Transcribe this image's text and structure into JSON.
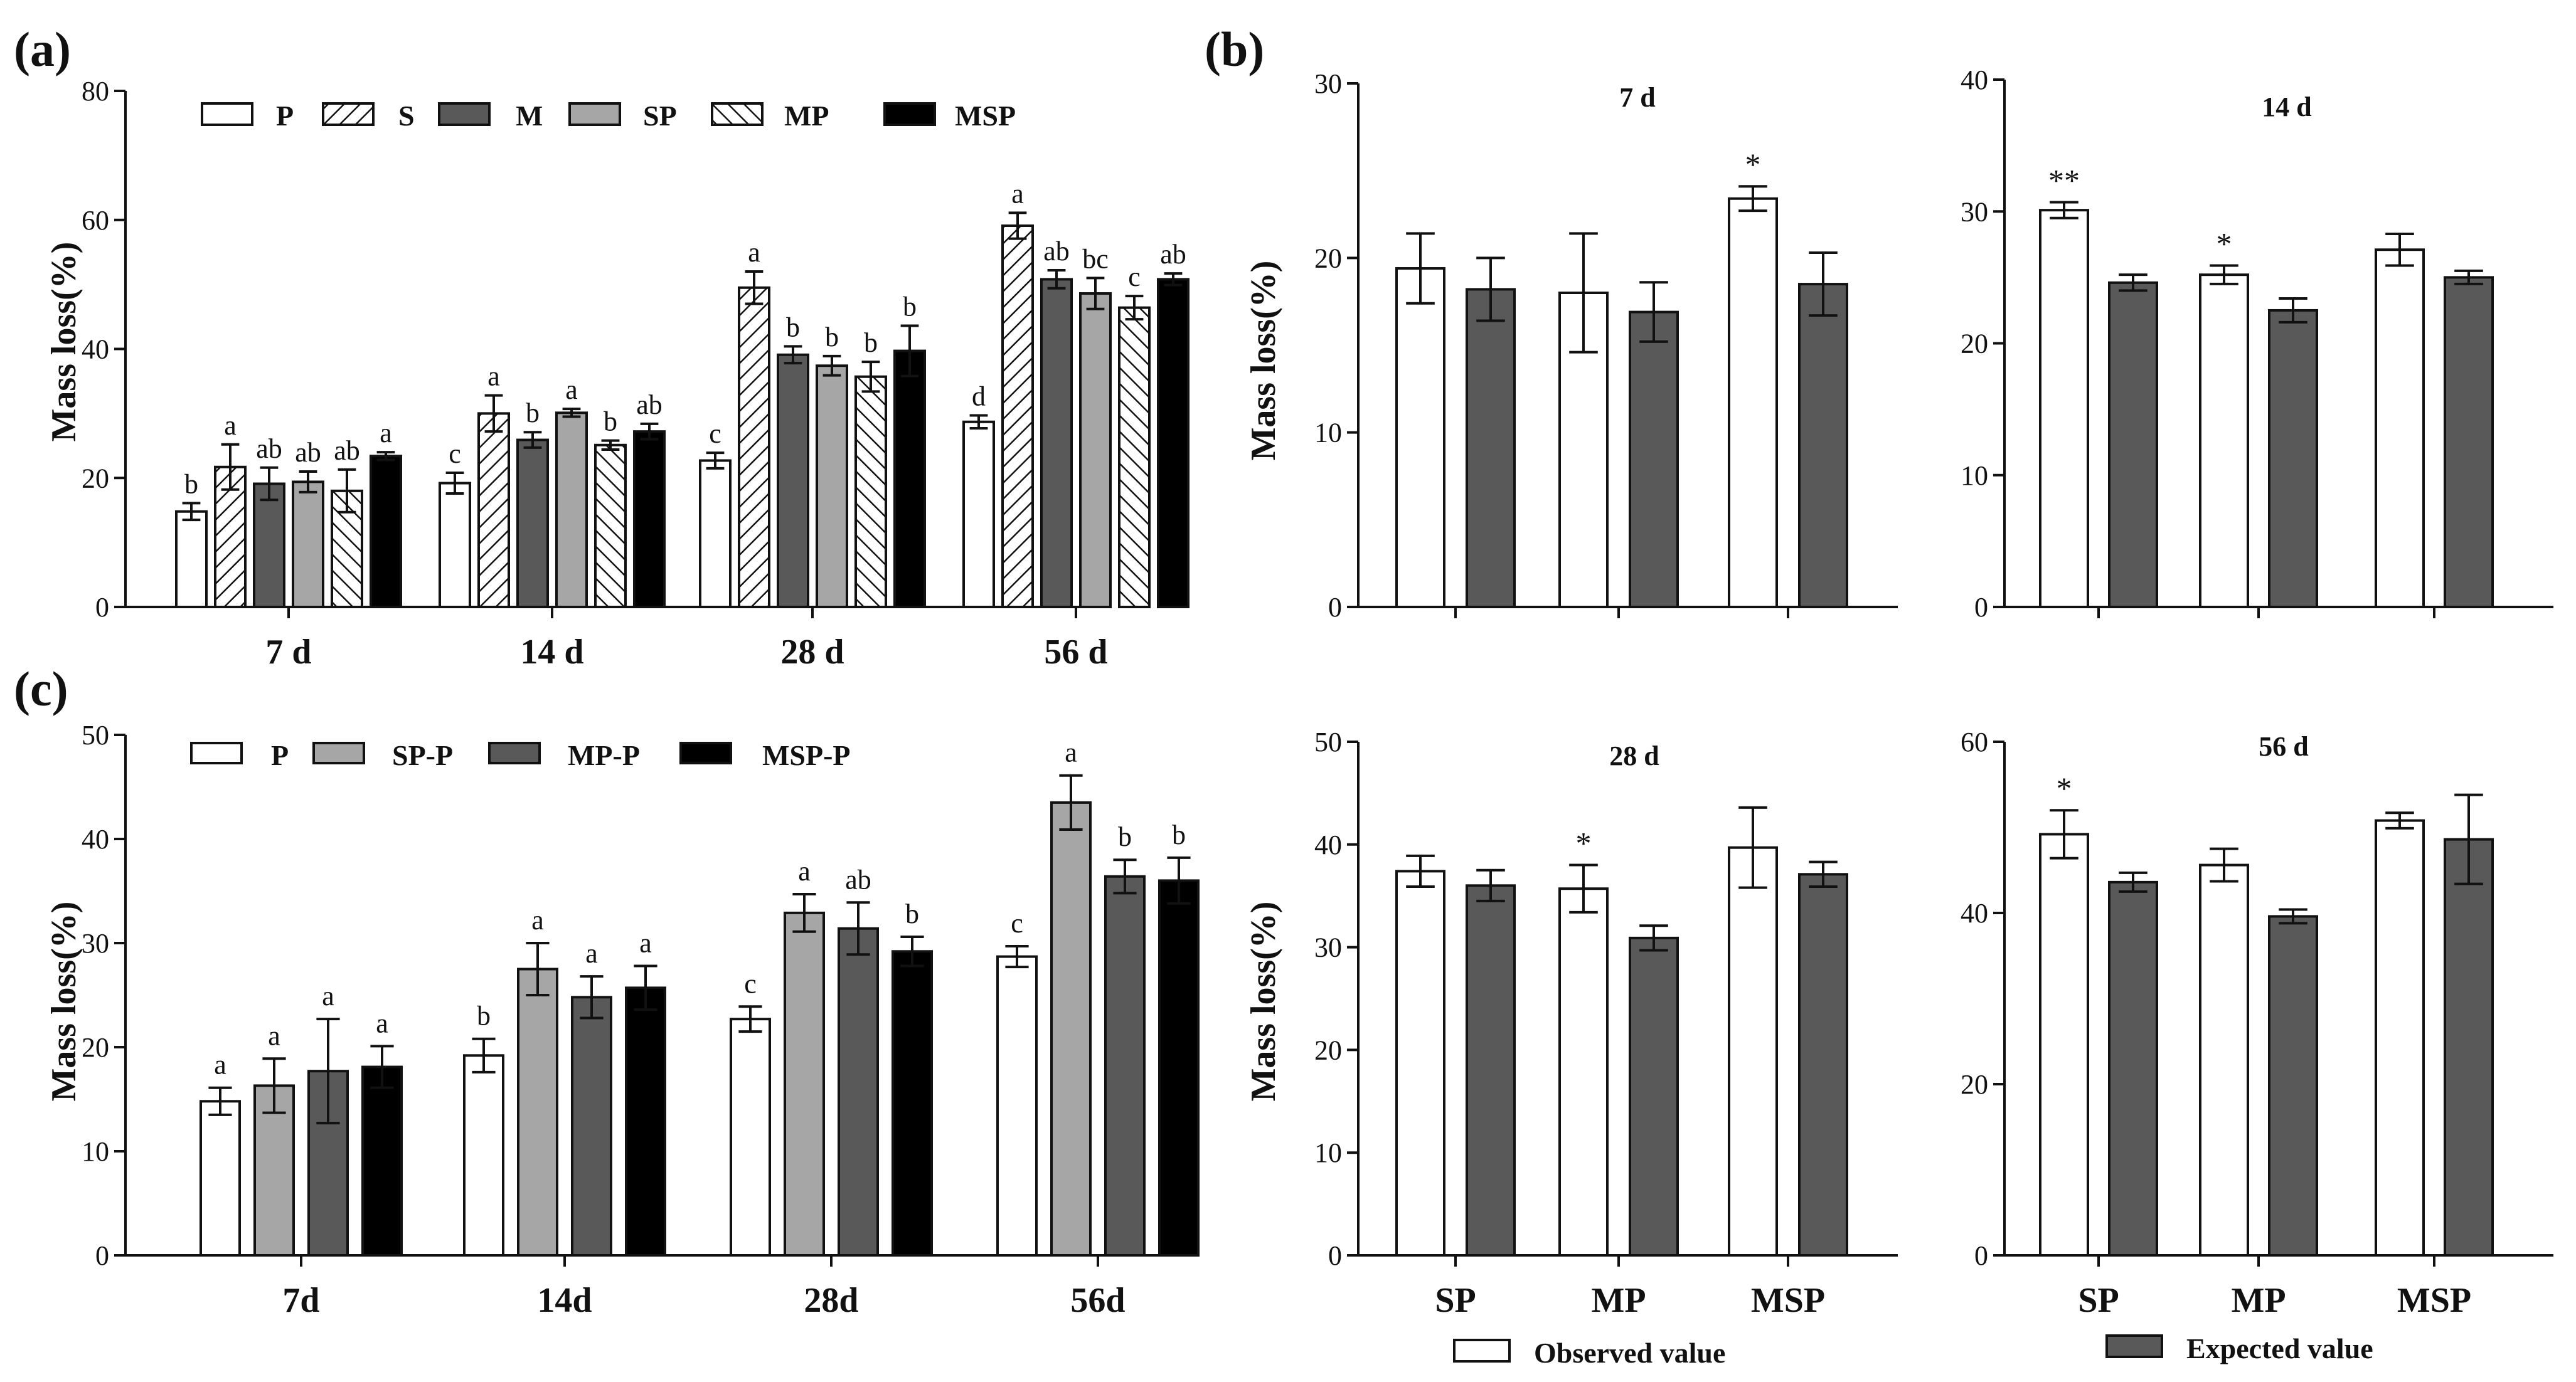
{
  "colors": {
    "P": "#ffffff",
    "S": "#ffffff",
    "M": "#595959",
    "SP": "#a6a6a6",
    "MP": "#ffffff",
    "MSP": "#000000",
    "SP-P": "#a6a6a6",
    "MP-P": "#595959",
    "MSP-P": "#000000",
    "observed": "#ffffff",
    "expected": "#595959",
    "ink": "#111111"
  },
  "chart_data": [
    {
      "id": "a",
      "panel_label": "(a)",
      "type": "bar",
      "ylabel": "Mass loss(%)",
      "ylim": [
        0,
        80
      ],
      "yticks": [
        0,
        20,
        40,
        60,
        80
      ],
      "categories": [
        "7 d",
        "14 d",
        "28 d",
        "56 d"
      ],
      "legend": [
        "P",
        "S",
        "M",
        "SP",
        "MP",
        "MSP"
      ],
      "series": [
        {
          "name": "P",
          "pattern": "plain",
          "values": [
            14.8,
            19.2,
            22.7,
            28.7
          ],
          "errors": [
            1.3,
            1.6,
            1.2,
            1.0
          ],
          "letters": [
            "b",
            "c",
            "c",
            "d"
          ]
        },
        {
          "name": "S",
          "pattern": "hatch-fwd",
          "values": [
            21.7,
            30.0,
            49.5,
            59.1
          ],
          "errors": [
            3.5,
            2.8,
            2.5,
            2.0
          ],
          "letters": [
            "a",
            "a",
            "a",
            "a"
          ]
        },
        {
          "name": "M",
          "pattern": "plain",
          "values": [
            19.1,
            25.9,
            39.1,
            50.8
          ],
          "errors": [
            2.5,
            1.2,
            1.3,
            1.4
          ],
          "letters": [
            "ab",
            "b",
            "b",
            "ab"
          ]
        },
        {
          "name": "SP",
          "pattern": "plain",
          "values": [
            19.4,
            30.1,
            37.4,
            48.6
          ],
          "errors": [
            1.6,
            0.6,
            1.5,
            2.4
          ],
          "letters": [
            "ab",
            "a",
            "b",
            "bc"
          ]
        },
        {
          "name": "MP",
          "pattern": "hatch-back",
          "values": [
            18.0,
            25.1,
            35.7,
            46.4
          ],
          "errors": [
            3.3,
            0.7,
            2.3,
            1.8
          ],
          "letters": [
            "ab",
            "b",
            "b",
            "c"
          ]
        },
        {
          "name": "MSP",
          "pattern": "plain",
          "values": [
            23.4,
            27.2,
            39.7,
            50.8
          ],
          "errors": [
            0.6,
            1.2,
            3.9,
            0.9
          ],
          "letters": [
            "a",
            "ab",
            "b",
            "ab"
          ]
        }
      ]
    },
    {
      "id": "c",
      "panel_label": "(c)",
      "type": "bar",
      "ylabel": "Mass loss(%)",
      "ylim": [
        0,
        50
      ],
      "yticks": [
        0,
        10,
        20,
        30,
        40,
        50
      ],
      "categories": [
        "7d",
        "14d",
        "28d",
        "56d"
      ],
      "legend": [
        "P",
        "SP-P",
        "MP-P",
        "MSP-P"
      ],
      "series": [
        {
          "name": "P",
          "pattern": "plain",
          "values": [
            14.8,
            19.2,
            22.7,
            28.7
          ],
          "errors": [
            1.3,
            1.6,
            1.2,
            1.0
          ],
          "letters": [
            "a",
            "b",
            "c",
            "c"
          ]
        },
        {
          "name": "SP-P",
          "pattern": "plain",
          "values": [
            16.3,
            27.5,
            32.9,
            43.5
          ],
          "errors": [
            2.6,
            2.5,
            1.8,
            2.6
          ],
          "letters": [
            "a",
            "a",
            "a",
            "a"
          ]
        },
        {
          "name": "MP-P",
          "pattern": "plain",
          "values": [
            17.7,
            24.8,
            31.4,
            36.4
          ],
          "errors": [
            5.0,
            2.0,
            2.5,
            1.6
          ],
          "letters": [
            "a",
            "a",
            "ab",
            "b"
          ]
        },
        {
          "name": "MSP-P",
          "pattern": "plain",
          "values": [
            18.1,
            25.7,
            29.2,
            36.0
          ],
          "errors": [
            2.0,
            2.1,
            1.4,
            2.2
          ],
          "letters": [
            "a",
            "a",
            "b",
            "b"
          ]
        }
      ]
    },
    {
      "id": "b1",
      "panel_label": "(b)",
      "title": "7 d",
      "type": "bar",
      "ylabel": "Mass loss(%)",
      "ylim": [
        0,
        30
      ],
      "yticks": [
        0,
        10,
        20,
        30
      ],
      "categories": [
        "SP",
        "MP",
        "MSP"
      ],
      "show_xticklabels": false,
      "series": [
        {
          "name": "Observed value",
          "values": [
            19.4,
            18.0,
            23.4
          ],
          "errors": [
            2.0,
            3.4,
            0.7
          ],
          "marks": [
            "",
            "",
            "*"
          ]
        },
        {
          "name": "Expected value",
          "values": [
            18.2,
            16.9,
            18.5
          ],
          "errors": [
            1.8,
            1.7,
            1.8
          ],
          "marks": [
            "",
            "",
            ""
          ]
        }
      ]
    },
    {
      "id": "b2",
      "panel_label": "",
      "title": "14 d",
      "type": "bar",
      "ylabel": "",
      "ylim": [
        0,
        40
      ],
      "yticks": [
        0,
        10,
        20,
        30,
        40
      ],
      "categories": [
        "SP",
        "MP",
        "MSP"
      ],
      "show_xticklabels": false,
      "series": [
        {
          "name": "Observed value",
          "values": [
            30.1,
            25.2,
            27.1
          ],
          "errors": [
            0.6,
            0.7,
            1.2
          ],
          "marks": [
            "**",
            "*",
            ""
          ]
        },
        {
          "name": "Expected value",
          "values": [
            24.6,
            22.5,
            25.0
          ],
          "errors": [
            0.6,
            0.9,
            0.5
          ],
          "marks": [
            "",
            "",
            ""
          ]
        }
      ]
    },
    {
      "id": "b3",
      "panel_label": "",
      "title": "28 d",
      "type": "bar",
      "ylabel": "Mass loss(%)",
      "ylim": [
        0,
        50
      ],
      "yticks": [
        0,
        10,
        20,
        30,
        40,
        50
      ],
      "categories": [
        "SP",
        "MP",
        "MSP"
      ],
      "show_xticklabels": true,
      "series": [
        {
          "name": "Observed value",
          "values": [
            37.4,
            35.7,
            39.7
          ],
          "errors": [
            1.5,
            2.3,
            3.9
          ],
          "marks": [
            "",
            "*",
            ""
          ]
        },
        {
          "name": "Expected value",
          "values": [
            36.0,
            30.9,
            37.1
          ],
          "errors": [
            1.5,
            1.2,
            1.2
          ],
          "marks": [
            "",
            "",
            ""
          ]
        }
      ]
    },
    {
      "id": "b4",
      "panel_label": "",
      "title": "56 d",
      "type": "bar",
      "ylabel": "",
      "ylim": [
        0,
        60
      ],
      "yticks": [
        0,
        20,
        40,
        60
      ],
      "categories": [
        "SP",
        "MP",
        "MSP"
      ],
      "show_xticklabels": true,
      "series": [
        {
          "name": "Observed value",
          "values": [
            49.2,
            45.6,
            50.8
          ],
          "errors": [
            2.8,
            1.9,
            0.9
          ],
          "marks": [
            "*",
            "",
            ""
          ]
        },
        {
          "name": "Expected value",
          "values": [
            43.6,
            39.6,
            48.6
          ],
          "errors": [
            1.1,
            0.8,
            5.2
          ],
          "marks": [
            "",
            "",
            ""
          ]
        }
      ]
    }
  ],
  "bottom_legend": {
    "observed": "Observed value",
    "expected": "Expected value"
  }
}
